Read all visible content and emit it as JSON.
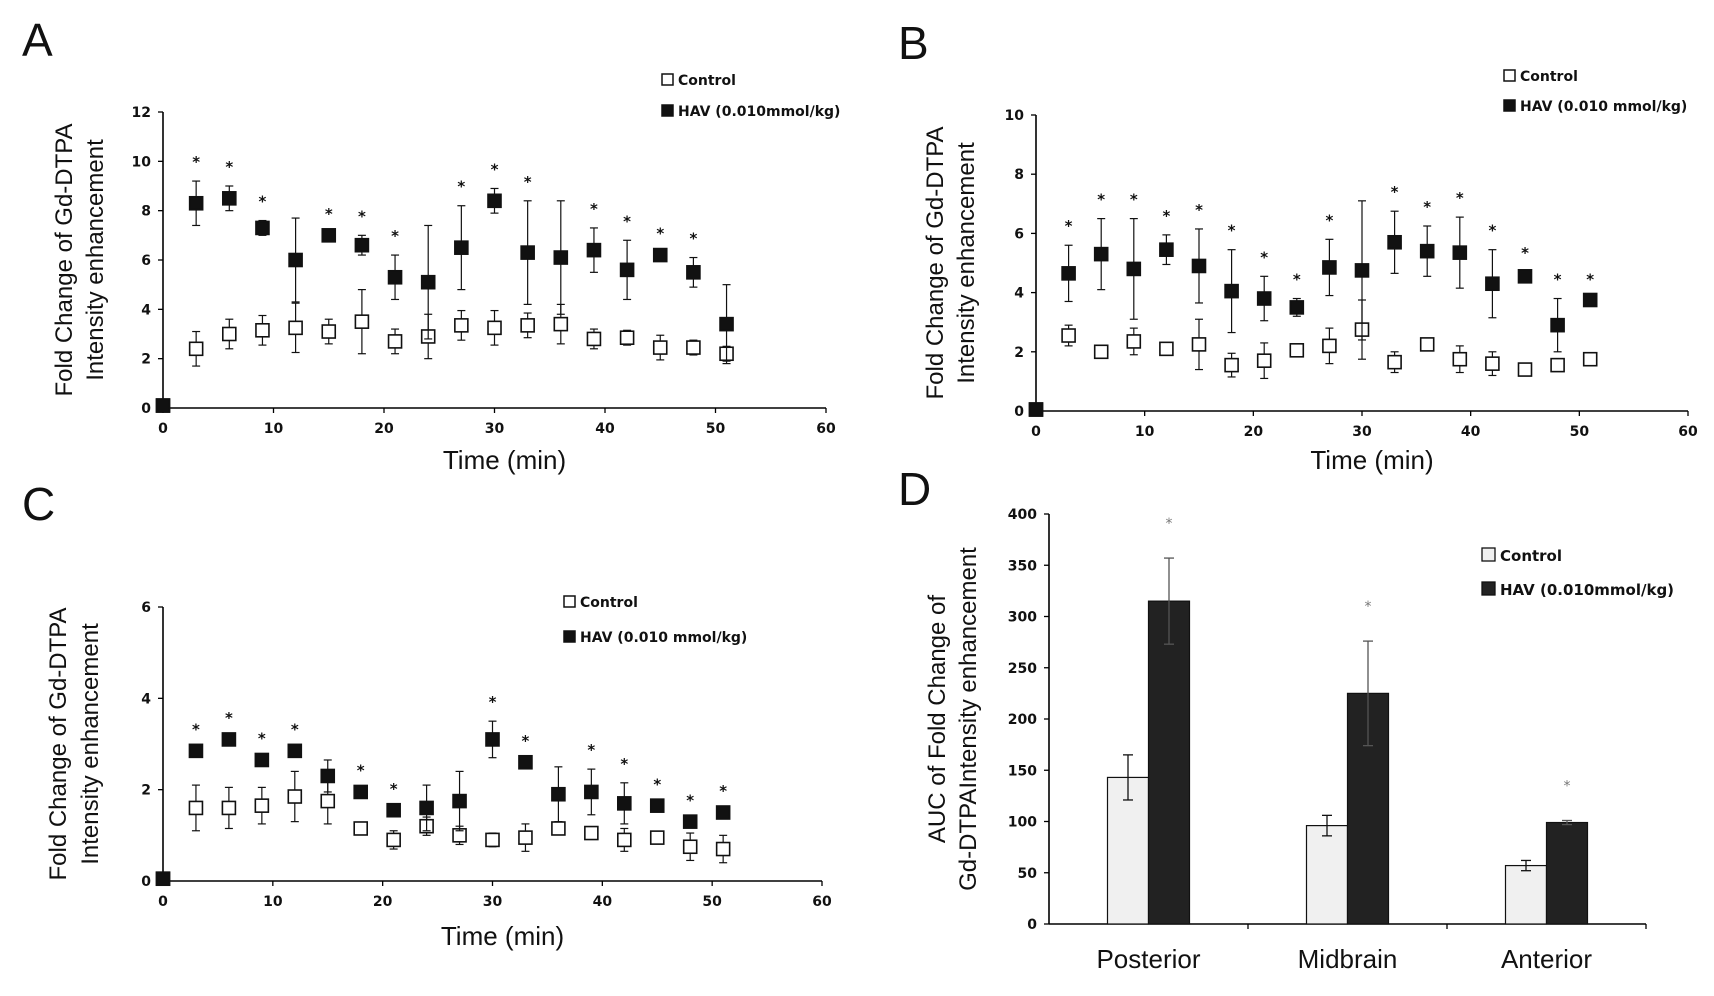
{
  "chart_data": [
    {
      "panel": "A",
      "type": "scatter",
      "xlabel": "Time (min)",
      "ylabel": [
        "Fold Change of Gd-DTPA",
        "Intensity enhancement"
      ],
      "xlim": [
        0,
        60
      ],
      "ylim": [
        0,
        12
      ],
      "xticks": [
        "0",
        "10",
        "20",
        "30",
        "40",
        "50",
        "60"
      ],
      "yticks": [
        "0",
        "2",
        "4",
        "6",
        "8",
        "10",
        "12"
      ],
      "legend": {
        "position": "top-right",
        "entries": [
          "Control",
          "HAV (0.010mmol/kg)"
        ]
      },
      "series": [
        {
          "name": "Control",
          "style": "open-square",
          "x": [
            0,
            3,
            6,
            9,
            12,
            15,
            18,
            21,
            24,
            27,
            30,
            33,
            36,
            39,
            42,
            45,
            48,
            51
          ],
          "y": [
            0.1,
            2.4,
            3.0,
            3.15,
            3.25,
            3.1,
            3.5,
            2.7,
            2.9,
            3.35,
            3.25,
            3.35,
            3.4,
            2.8,
            2.85,
            2.45,
            2.45,
            2.2
          ],
          "err": [
            0,
            0.7,
            0.6,
            0.6,
            1.0,
            0.5,
            1.3,
            0.5,
            0.9,
            0.6,
            0.7,
            0.5,
            0.8,
            0.4,
            0.3,
            0.5,
            0.3,
            0.3
          ]
        },
        {
          "name": "HAV (0.010mmol/kg)",
          "style": "filled-square",
          "x": [
            0,
            3,
            6,
            9,
            12,
            15,
            18,
            21,
            24,
            27,
            30,
            33,
            36,
            39,
            42,
            45,
            48,
            51
          ],
          "y": [
            0.1,
            8.3,
            8.5,
            7.3,
            6.0,
            7.0,
            6.6,
            5.3,
            5.1,
            6.5,
            8.4,
            6.3,
            6.1,
            6.4,
            5.6,
            6.2,
            5.5,
            3.4
          ],
          "err": [
            0,
            0.9,
            0.5,
            0.3,
            1.7,
            0.1,
            0.4,
            0.9,
            2.3,
            1.7,
            0.5,
            2.1,
            2.3,
            0.9,
            1.2,
            0.1,
            0.6,
            1.6
          ]
        }
      ],
      "significance": {
        "marker": "*",
        "x": [
          3,
          6,
          9,
          15,
          18,
          21,
          27,
          30,
          33,
          39,
          42,
          45,
          48
        ]
      }
    },
    {
      "panel": "B",
      "type": "scatter",
      "xlabel": "Time (min)",
      "ylabel": [
        "Fold Change of Gd-DTPA",
        "Intensity enhancement"
      ],
      "xlim": [
        0,
        60
      ],
      "ylim": [
        0,
        10
      ],
      "xticks": [
        "0",
        "10",
        "20",
        "30",
        "40",
        "50",
        "60"
      ],
      "yticks": [
        "0",
        "2",
        "4",
        "6",
        "8",
        "10"
      ],
      "legend": {
        "position": "top-right",
        "entries": [
          "Control",
          "HAV (0.010 mmol/kg)"
        ]
      },
      "series": [
        {
          "name": "Control",
          "style": "open-square",
          "x": [
            0,
            3,
            6,
            9,
            12,
            15,
            18,
            21,
            24,
            27,
            30,
            33,
            36,
            39,
            42,
            45,
            48,
            51
          ],
          "y": [
            0.05,
            2.55,
            2.0,
            2.35,
            2.1,
            2.25,
            1.55,
            1.7,
            2.05,
            2.2,
            2.75,
            1.65,
            2.25,
            1.75,
            1.6,
            1.4,
            1.55,
            1.75
          ],
          "err": [
            0,
            0.35,
            0.15,
            0.45,
            0.2,
            0.85,
            0.4,
            0.6,
            0.2,
            0.6,
            1.0,
            0.35,
            0.15,
            0.45,
            0.4,
            0.2,
            0.1,
            0.15
          ]
        },
        {
          "name": "HAV (0.010 mmol/kg)",
          "style": "filled-square",
          "x": [
            0,
            3,
            6,
            9,
            12,
            15,
            18,
            21,
            24,
            27,
            30,
            33,
            36,
            39,
            42,
            45,
            48,
            51
          ],
          "y": [
            0.05,
            4.65,
            5.3,
            4.8,
            5.45,
            4.9,
            4.05,
            3.8,
            3.5,
            4.85,
            4.75,
            5.7,
            5.4,
            5.35,
            4.3,
            4.55,
            2.9,
            3.75
          ],
          "err": [
            0,
            0.95,
            1.2,
            1.7,
            0.5,
            1.25,
            1.4,
            0.75,
            0.3,
            0.95,
            2.35,
            1.05,
            0.85,
            1.2,
            1.15,
            0.15,
            0.9,
            0.05
          ]
        }
      ],
      "significance": {
        "marker": "*",
        "x": [
          3,
          6,
          9,
          12,
          15,
          18,
          21,
          24,
          27,
          33,
          36,
          39,
          42,
          45,
          48,
          51
        ]
      }
    },
    {
      "panel": "C",
      "type": "scatter",
      "xlabel": "Time (min)",
      "ylabel": [
        "Fold Change of Gd-DTPA",
        "Intensity enhancement"
      ],
      "xlim": [
        0,
        60
      ],
      "ylim": [
        0,
        6
      ],
      "xticks": [
        "0",
        "10",
        "20",
        "30",
        "40",
        "50",
        "60"
      ],
      "yticks": [
        "0",
        "2",
        "4",
        "6"
      ],
      "legend": {
        "position": "top-right",
        "entries": [
          "Control",
          "HAV (0.010 mmol/kg)"
        ]
      },
      "series": [
        {
          "name": "Control",
          "style": "open-square",
          "x": [
            0,
            3,
            6,
            9,
            12,
            15,
            18,
            21,
            24,
            27,
            30,
            33,
            36,
            39,
            42,
            45,
            48,
            51
          ],
          "y": [
            0.05,
            1.6,
            1.6,
            1.65,
            1.85,
            1.75,
            1.15,
            0.9,
            1.2,
            1.0,
            0.9,
            0.95,
            1.15,
            1.05,
            0.9,
            0.95,
            0.75,
            0.7
          ],
          "err": [
            0,
            0.5,
            0.45,
            0.4,
            0.55,
            0.5,
            0.1,
            0.2,
            0.2,
            0.2,
            0.15,
            0.3,
            0.1,
            0.05,
            0.25,
            0.1,
            0.3,
            0.3
          ]
        },
        {
          "name": "HAV (0.010 mmol/kg)",
          "style": "filled-square",
          "x": [
            0,
            3,
            6,
            9,
            12,
            15,
            18,
            21,
            24,
            27,
            30,
            33,
            36,
            39,
            42,
            45,
            48,
            51
          ],
          "y": [
            0.05,
            2.85,
            3.1,
            2.65,
            2.85,
            2.3,
            1.95,
            1.55,
            1.6,
            1.75,
            3.1,
            2.6,
            1.9,
            1.95,
            1.7,
            1.65,
            1.3,
            1.5
          ],
          "err": [
            0,
            0.05,
            0.05,
            0.05,
            0.05,
            0.35,
            0.05,
            0.05,
            0.5,
            0.65,
            0.4,
            0.05,
            0.6,
            0.5,
            0.45,
            0.05,
            0.05,
            0.05
          ]
        }
      ],
      "significance": {
        "marker": "*",
        "x": [
          3,
          6,
          9,
          12,
          18,
          21,
          30,
          33,
          39,
          42,
          45,
          48,
          51
        ]
      }
    },
    {
      "panel": "D",
      "type": "bar",
      "categories": [
        "Posterior",
        "Midbrain",
        "Anterior"
      ],
      "ylabel": [
        "AUC of Fold Change of",
        "Gd-DTPAIntensity enhancement"
      ],
      "ylim": [
        0,
        400
      ],
      "yticks": [
        "0",
        "50",
        "100",
        "150",
        "200",
        "250",
        "300",
        "350",
        "400"
      ],
      "legend": {
        "position": "top-right",
        "entries": [
          "Control",
          "HAV (0.010mmol/kg)"
        ]
      },
      "series": [
        {
          "name": "Control",
          "color": "#f0f0f0",
          "values": [
            143,
            96,
            57
          ],
          "err": [
            22,
            10,
            5
          ]
        },
        {
          "name": "HAV (0.010mmol/kg)",
          "color": "#222222",
          "values": [
            315,
            225,
            99
          ],
          "err": [
            42,
            51,
            2
          ]
        }
      ],
      "significance": {
        "marker": "*",
        "categories": [
          "Posterior",
          "Midbrain",
          "Anterior"
        ]
      }
    }
  ]
}
